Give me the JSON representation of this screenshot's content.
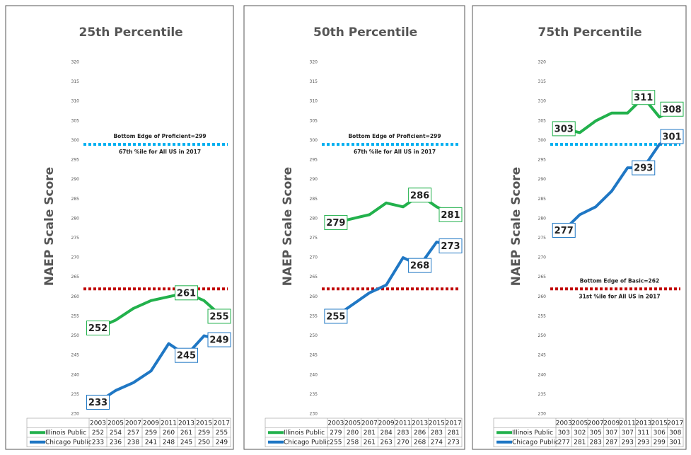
{
  "chart_data": [
    {
      "type": "line",
      "title": "25th Percentile",
      "y_label": "NAEP Scale Score",
      "categories": [
        "2003",
        "2005",
        "2007",
        "2009",
        "2011",
        "2013",
        "2015",
        "2017"
      ],
      "ylim": [
        230,
        320
      ],
      "yticks": [
        230,
        235,
        240,
        245,
        250,
        255,
        260,
        265,
        270,
        275,
        280,
        285,
        290,
        295,
        300,
        305,
        310,
        315,
        320
      ],
      "series": [
        {
          "name": "Illinois Public",
          "color": "#22b14c",
          "values": [
            252,
            254,
            257,
            259,
            260,
            261,
            259,
            255
          ],
          "labeled_indices": [
            0,
            5,
            7
          ]
        },
        {
          "name": "Chicago Public",
          "color": "#1f77c4",
          "values": [
            233,
            236,
            238,
            241,
            248,
            245,
            250,
            249
          ],
          "labeled_indices": [
            0,
            5,
            7
          ]
        }
      ],
      "reference_lines": [
        {
          "value": 299,
          "color": "#00b0f0",
          "labels": [
            "Bottom Edge of Proficient=299",
            "67th %ile for All US in 2017"
          ]
        },
        {
          "value": 262,
          "color": "#c00000",
          "labels": []
        }
      ]
    },
    {
      "type": "line",
      "title": "50th Percentile",
      "y_label": "NAEP Scale Score",
      "categories": [
        "2003",
        "2005",
        "2007",
        "2009",
        "2011",
        "2013",
        "2015",
        "2017"
      ],
      "ylim": [
        230,
        320
      ],
      "yticks": [
        230,
        235,
        240,
        245,
        250,
        255,
        260,
        265,
        270,
        275,
        280,
        285,
        290,
        295,
        300,
        305,
        310,
        315,
        320
      ],
      "series": [
        {
          "name": "Illinois Public",
          "color": "#22b14c",
          "values": [
            279,
            280,
            281,
            284,
            283,
            286,
            283,
            281
          ],
          "labeled_indices": [
            0,
            5,
            7
          ]
        },
        {
          "name": "Chicago Public",
          "color": "#1f77c4",
          "values": [
            255,
            258,
            261,
            263,
            270,
            268,
            274,
            273
          ],
          "labeled_indices": [
            0,
            5,
            7
          ]
        }
      ],
      "reference_lines": [
        {
          "value": 299,
          "color": "#00b0f0",
          "labels": [
            "Bottom Edge of Proficient=299",
            "67th %ile for All US in 2017"
          ]
        },
        {
          "value": 262,
          "color": "#c00000",
          "labels": []
        }
      ]
    },
    {
      "type": "line",
      "title": "75th Percentile",
      "y_label": "NAEP Scale Score",
      "categories": [
        "2003",
        "2005",
        "2007",
        "2009",
        "2011",
        "2013",
        "2015",
        "2017"
      ],
      "ylim": [
        230,
        320
      ],
      "yticks": [
        230,
        235,
        240,
        245,
        250,
        255,
        260,
        265,
        270,
        275,
        280,
        285,
        290,
        295,
        300,
        305,
        310,
        315,
        320
      ],
      "series": [
        {
          "name": "Illinois Public",
          "color": "#22b14c",
          "values": [
            303,
            302,
            305,
            307,
            307,
            311,
            306,
            308
          ],
          "labeled_indices": [
            0,
            5,
            7
          ]
        },
        {
          "name": "Chicago Public",
          "color": "#1f77c4",
          "values": [
            277,
            281,
            283,
            287,
            293,
            293,
            299,
            301
          ],
          "labeled_indices": [
            0,
            5,
            7
          ]
        }
      ],
      "reference_lines": [
        {
          "value": 299,
          "color": "#00b0f0",
          "labels": []
        },
        {
          "value": 262,
          "color": "#c00000",
          "labels": [
            "Bottom Edge of Basic=262",
            "31st  %ile for All US in 2017"
          ]
        }
      ]
    }
  ]
}
